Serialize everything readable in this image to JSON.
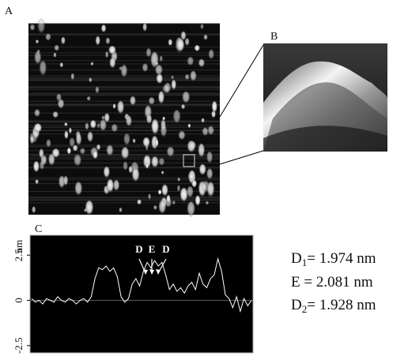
{
  "panels": {
    "a": "A",
    "b": "B",
    "c": "C"
  },
  "chart_data": {
    "type": "line",
    "y_label": "nm",
    "values": [
      0.1,
      -0.1,
      0,
      -0.2,
      0.1,
      0,
      -0.1,
      0.2,
      0,
      -0.1,
      0.1,
      0,
      -0.2,
      0,
      0.1,
      -0.1,
      0.2,
      1.2,
      1.8,
      1.7,
      1.9,
      1.6,
      1.8,
      1.3,
      0.2,
      -0.1,
      0.1,
      0.9,
      1.2,
      0.8,
      1.6,
      2.1,
      1.8,
      2.2,
      1.9,
      2.1,
      1.4,
      0.6,
      0.9,
      0.5,
      0.7,
      0.4,
      0.8,
      1.0,
      0.6,
      1.5,
      0.9,
      0.7,
      1.2,
      1.4,
      2.3,
      1.6,
      0.3,
      0.1,
      -0.4,
      0.2,
      -0.6,
      0.1,
      -0.3,
      0.0
    ],
    "color": "#ffffff",
    "ylim": [
      -2.9,
      3.6
    ],
    "yticks": [
      2.5,
      0,
      -2.5
    ],
    "annotations": [
      "D",
      "E",
      "D"
    ]
  },
  "measurements": [
    {
      "symbol": "D",
      "sub": "1",
      "text": "= 1.974 nm"
    },
    {
      "symbol": "E",
      "sub": "",
      "text": " = 2.081 nm"
    },
    {
      "symbol": "D",
      "sub": "2",
      "text": "= 1.928 nm"
    }
  ]
}
